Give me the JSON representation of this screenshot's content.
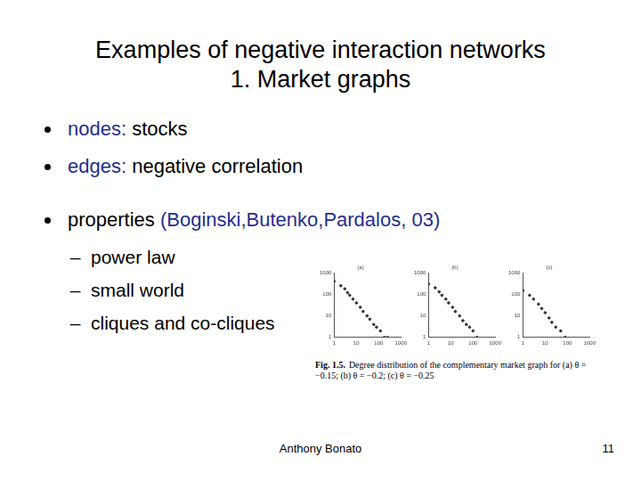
{
  "slide": {
    "title": [
      "Examples of negative interaction networks",
      "1. Market graphs"
    ],
    "bullets": [
      {
        "parts": [
          {
            "text": "nodes:",
            "color": "#1f2f8f"
          },
          {
            "text": " stocks"
          }
        ]
      },
      {
        "parts": [
          {
            "text": "edges:",
            "color": "#1f2f8f"
          },
          {
            "text": " negative correlation"
          }
        ]
      },
      {
        "parts": [
          {
            "text": "properties "
          },
          {
            "text": "(Boginski,Butenko,Pardalos, 03)",
            "color": "#1f2f8f"
          }
        ],
        "sub": [
          "power law",
          "small world",
          "cliques and co-cliques"
        ]
      }
    ],
    "caption": {
      "label": "Fig. 1.5.",
      "text": "Degree distribution of the complementary market graph for (a) θ = −0.15; (b) θ = −0.2; (c) θ = −0.25"
    },
    "footer": "Anthony Bonato",
    "page_number": 11
  },
  "chart_data": [
    {
      "type": "scatter",
      "title": "(a)",
      "x": [
        1,
        2,
        3,
        4,
        5,
        7,
        10,
        15,
        20,
        30,
        40,
        60,
        80,
        120,
        180,
        250
      ],
      "values": [
        400,
        250,
        180,
        120,
        90,
        60,
        40,
        25,
        16,
        10,
        7,
        4,
        3,
        2,
        1,
        1
      ],
      "log": true,
      "xlim": [
        1,
        1000
      ],
      "ylim": [
        1,
        1000
      ],
      "xticks": [
        1,
        10,
        100,
        1000
      ],
      "yticks": [
        1,
        10,
        100,
        1000
      ],
      "color": "#333333",
      "marker": "circle",
      "grid": false
    },
    {
      "type": "scatter",
      "title": "(b)",
      "x": [
        1,
        2,
        3,
        4,
        6,
        8,
        12,
        16,
        25,
        35,
        50,
        70,
        100,
        150
      ],
      "values": [
        300,
        200,
        130,
        90,
        60,
        40,
        25,
        16,
        10,
        6,
        4,
        3,
        2,
        1
      ],
      "log": true,
      "xlim": [
        1,
        1000
      ],
      "ylim": [
        1,
        1000
      ],
      "xticks": [
        1,
        10,
        100,
        1000
      ],
      "yticks": [
        1,
        10,
        100,
        1000
      ],
      "color": "#333333",
      "marker": "circle",
      "grid": false
    },
    {
      "type": "scatter",
      "title": "(c)",
      "x": [
        1,
        2,
        3,
        5,
        7,
        10,
        15,
        20,
        30,
        50,
        80
      ],
      "values": [
        150,
        90,
        60,
        35,
        22,
        14,
        8,
        5,
        3,
        2,
        1
      ],
      "log": true,
      "xlim": [
        1,
        1000
      ],
      "ylim": [
        1,
        1000
      ],
      "xticks": [
        1,
        10,
        100,
        1000
      ],
      "yticks": [
        1,
        10,
        100,
        1000
      ],
      "color": "#333333",
      "marker": "circle",
      "grid": false
    }
  ]
}
